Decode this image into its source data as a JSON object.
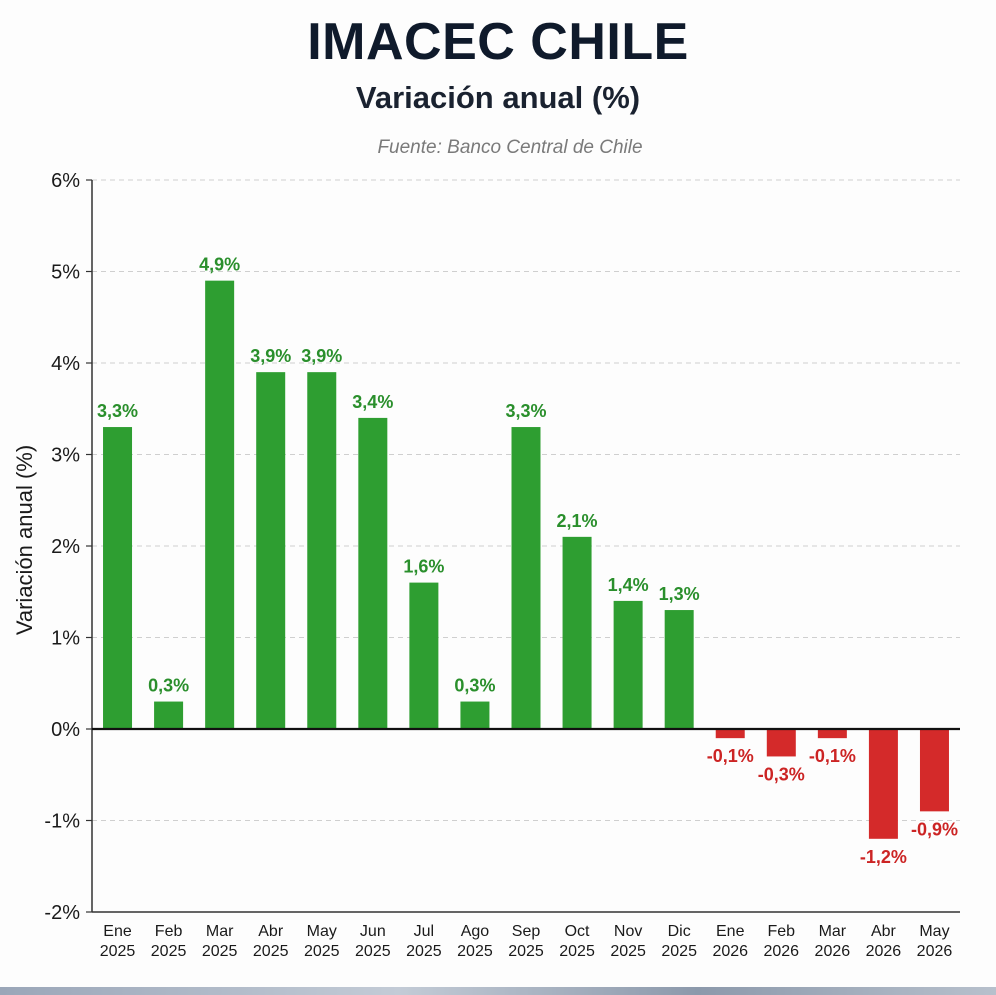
{
  "header": {
    "title": "IMACEC CHILE",
    "subtitle": "Variación anual (%)",
    "source": "Fuente: Banco Central de Chile"
  },
  "chart_data": {
    "type": "bar",
    "title": "IMACEC CHILE",
    "subtitle": "Variación anual (%)",
    "ylabel": "Variación anual (%)",
    "xlabel": "",
    "ylim": [
      -2,
      6
    ],
    "yticks": [
      6,
      5,
      4,
      3,
      2,
      1,
      0,
      -1,
      -2
    ],
    "ytick_labels": [
      "6%",
      "5%",
      "4%",
      "3%",
      "2%",
      "1%",
      "0%",
      "-1%",
      "-2%"
    ],
    "grid": "horizontal-dashed",
    "categories": [
      [
        "Ene",
        "2025"
      ],
      [
        "Feb",
        "2025"
      ],
      [
        "Mar",
        "2025"
      ],
      [
        "Abr",
        "2025"
      ],
      [
        "May",
        "2025"
      ],
      [
        "Jun",
        "2025"
      ],
      [
        "Jul",
        "2025"
      ],
      [
        "Ago",
        "2025"
      ],
      [
        "Sep",
        "2025"
      ],
      [
        "Oct",
        "2025"
      ],
      [
        "Nov",
        "2025"
      ],
      [
        "Dic",
        "2025"
      ],
      [
        "Ene",
        "2026"
      ],
      [
        "Feb",
        "2026"
      ],
      [
        "Mar",
        "2026"
      ],
      [
        "Abr",
        "2026"
      ],
      [
        "May",
        "2026"
      ]
    ],
    "values": [
      3.3,
      0.3,
      4.9,
      3.9,
      3.9,
      3.4,
      1.6,
      0.3,
      3.3,
      2.1,
      1.4,
      1.3,
      -0.1,
      -0.3,
      -0.1,
      -1.2,
      -0.9
    ],
    "labels": [
      "3,3%",
      "0,3%",
      "4,9%",
      "3,9%",
      "3,9%",
      "3,4%",
      "1,6%",
      "0,3%",
      "3,3%",
      "2,1%",
      "1,4%",
      "1,3%",
      "-0,1%",
      "-0,3%",
      "-0,1%",
      "-1,2%",
      "-0,9%"
    ],
    "colors": {
      "positive": "#2e9e31",
      "negative": "#d42a2a",
      "positive_label": "#2a8f2c",
      "negative_label": "#cc2424"
    }
  }
}
